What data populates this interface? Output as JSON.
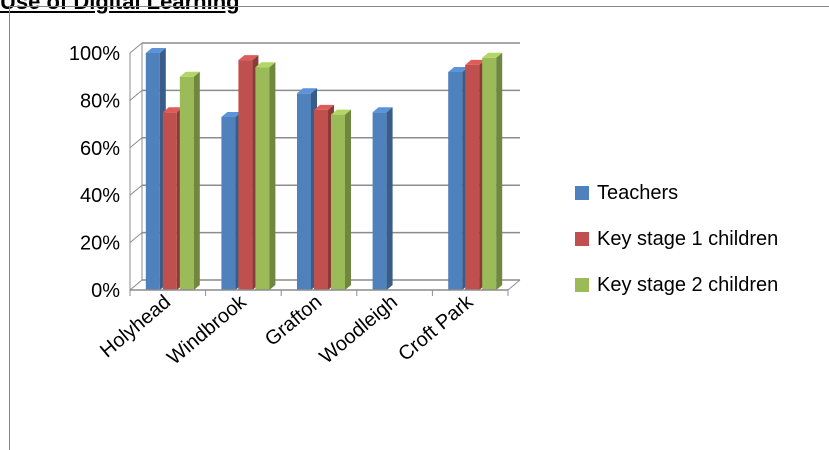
{
  "header": {
    "title": "Use of Digital Learning"
  },
  "chart_data": {
    "type": "bar",
    "categories": [
      "Holyhead",
      "Windbrook",
      "Grafton",
      "Woodleigh",
      "Croft Park"
    ],
    "series": [
      {
        "name": "Teachers",
        "color": "#4F81BD",
        "values": [
          100,
          73,
          83,
          75,
          92
        ]
      },
      {
        "name": "Key stage 1 children",
        "color": "#C0504D",
        "values": [
          75,
          97,
          76,
          null,
          95
        ]
      },
      {
        "name": "Key stage 2 children",
        "color": "#9BBB59",
        "values": [
          90,
          94,
          74,
          null,
          98
        ]
      }
    ],
    "y_ticks": [
      "0%",
      "20%",
      "40%",
      "60%",
      "80%",
      "100%"
    ],
    "ylim": [
      0,
      100
    ],
    "grid": true,
    "legend_position": "right",
    "chart_style": "3d-clustered-column"
  }
}
